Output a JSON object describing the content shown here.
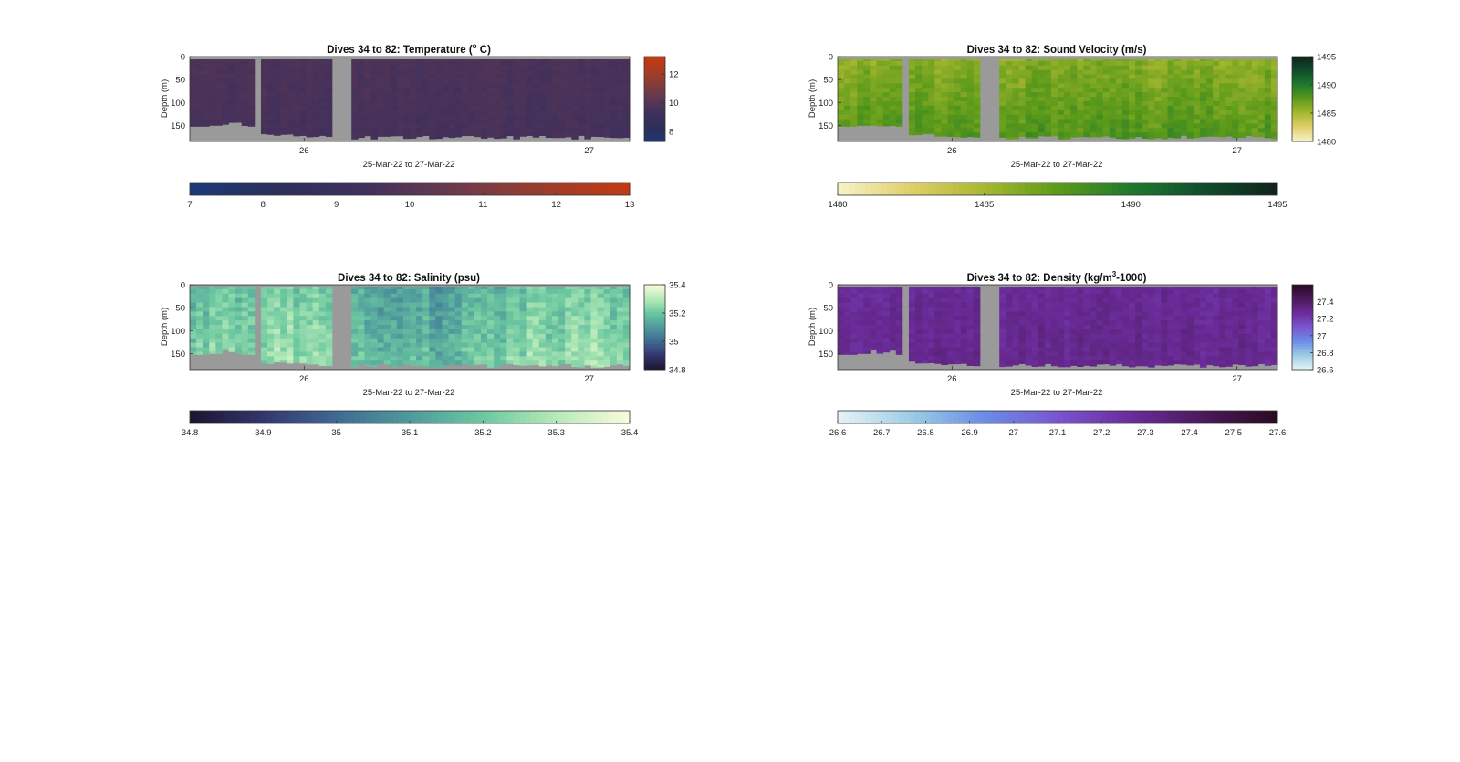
{
  "chart_data": [
    {
      "type": "heatmap",
      "title": "Dives 34 to 82: Temperature (",
      "title_sup": "o",
      "title_end": " C)",
      "xlabel": "25-Mar-22 to 27-Mar-22",
      "ylabel": "Depth (m)",
      "x_ticks": [
        "26",
        "27"
      ],
      "y_ticks": [
        "0",
        "50",
        "100",
        "150"
      ],
      "colorbar_v_ticks": [
        "8",
        "10",
        "12"
      ],
      "colorbar_v_values": [
        8,
        10,
        12
      ],
      "colorbar_v_range": [
        7.3,
        13.2
      ],
      "colorbar_h_ticks": [
        "7",
        "8",
        "9",
        "10",
        "11",
        "12",
        "13"
      ],
      "colorbar_h_values": [
        7,
        8,
        9,
        10,
        11,
        12,
        13
      ],
      "colorbar_h_range": [
        7,
        13
      ],
      "value_range": [
        7,
        13
      ],
      "field_base": 9.55,
      "field_spread": 0.25,
      "field_top_bias": 0.15,
      "colormap": [
        "#1a3a7a",
        "#2b2f5a",
        "#40305c",
        "#6a3a4e",
        "#9a3d2c",
        "#c23a12"
      ],
      "missing_color": "#9a9a9a"
    },
    {
      "type": "heatmap",
      "title": "Dives 34 to 82: Sound Velocity (m/s)",
      "xlabel": "25-Mar-22 to 27-Mar-22",
      "ylabel": "Depth (m)",
      "x_ticks": [
        "26",
        "27"
      ],
      "y_ticks": [
        "0",
        "50",
        "100",
        "150"
      ],
      "colorbar_v_ticks": [
        "1480",
        "1485",
        "1490",
        "1495"
      ],
      "colorbar_v_values": [
        1480,
        1485,
        1490,
        1495
      ],
      "colorbar_v_range": [
        1480,
        1495
      ],
      "colorbar_h_ticks": [
        "1480",
        "1485",
        "1490",
        "1495"
      ],
      "colorbar_h_values": [
        1480,
        1485,
        1490,
        1495
      ],
      "colorbar_h_range": [
        1480,
        1495
      ],
      "value_range": [
        1480,
        1495
      ],
      "field_base": 1488.0,
      "field_spread": 1.4,
      "field_top_bias": -2.0,
      "colormap": [
        "#f7f3c8",
        "#e0cf6a",
        "#a8b830",
        "#5c9a1a",
        "#1f7a2c",
        "#0f4d2c",
        "#10221a"
      ],
      "missing_color": "#9a9a9a"
    },
    {
      "type": "heatmap",
      "title": "Dives 34 to 82: Salinity (psu)",
      "xlabel": "25-Mar-22 to 27-Mar-22",
      "ylabel": "Depth (m)",
      "x_ticks": [
        "26",
        "27"
      ],
      "y_ticks": [
        "0",
        "50",
        "100",
        "150"
      ],
      "colorbar_v_ticks": [
        "34.8",
        "35",
        "35.2",
        "35.4"
      ],
      "colorbar_v_values": [
        34.8,
        35,
        35.2,
        35.4
      ],
      "colorbar_v_range": [
        34.8,
        35.4
      ],
      "colorbar_h_ticks": [
        "34.8",
        "34.9",
        "35",
        "35.1",
        "35.2",
        "35.3",
        "35.4"
      ],
      "colorbar_h_values": [
        34.8,
        34.9,
        35,
        35.1,
        35.2,
        35.3,
        35.4
      ],
      "colorbar_h_range": [
        34.8,
        35.4
      ],
      "value_range": [
        34.8,
        35.4
      ],
      "field_base": 35.22,
      "field_spread": 0.09,
      "field_top_bias": -0.06,
      "colormap": [
        "#1c1530",
        "#34356e",
        "#3f6a92",
        "#4f9a9c",
        "#6cc8a0",
        "#b6eab8",
        "#fbfbdc"
      ],
      "missing_color": "#9a9a9a"
    },
    {
      "type": "heatmap",
      "title": "Dives 34 to 82: Density (kg/m",
      "title_sup": "3",
      "title_end": "-1000)",
      "xlabel": "25-Mar-22 to 27-Mar-22",
      "ylabel": "Depth (m)",
      "x_ticks": [
        "26",
        "27"
      ],
      "y_ticks": [
        "0",
        "50",
        "100",
        "150"
      ],
      "colorbar_v_ticks": [
        "26.6",
        "26.8",
        "27",
        "27.2",
        "27.4"
      ],
      "colorbar_v_values": [
        26.6,
        26.8,
        27,
        27.2,
        27.4
      ],
      "colorbar_v_range": [
        26.6,
        27.6
      ],
      "colorbar_h_ticks": [
        "26.6",
        "26.7",
        "26.8",
        "26.9",
        "27",
        "27.1",
        "27.2",
        "27.3",
        "27.4",
        "27.5",
        "27.6"
      ],
      "colorbar_h_values": [
        26.6,
        26.7,
        26.8,
        26.9,
        27,
        27.1,
        27.2,
        27.3,
        27.4,
        27.5,
        27.6
      ],
      "colorbar_h_range": [
        26.6,
        27.6
      ],
      "value_range": [
        26.6,
        27.6
      ],
      "field_base": 27.3,
      "field_spread": 0.06,
      "field_top_bias": -0.02,
      "colormap": [
        "#e6f3f6",
        "#9ccde6",
        "#6a8de6",
        "#7a55d0",
        "#6b2c9a",
        "#4a1a5a",
        "#2a0a22"
      ],
      "missing_color": "#9a9a9a"
    }
  ]
}
